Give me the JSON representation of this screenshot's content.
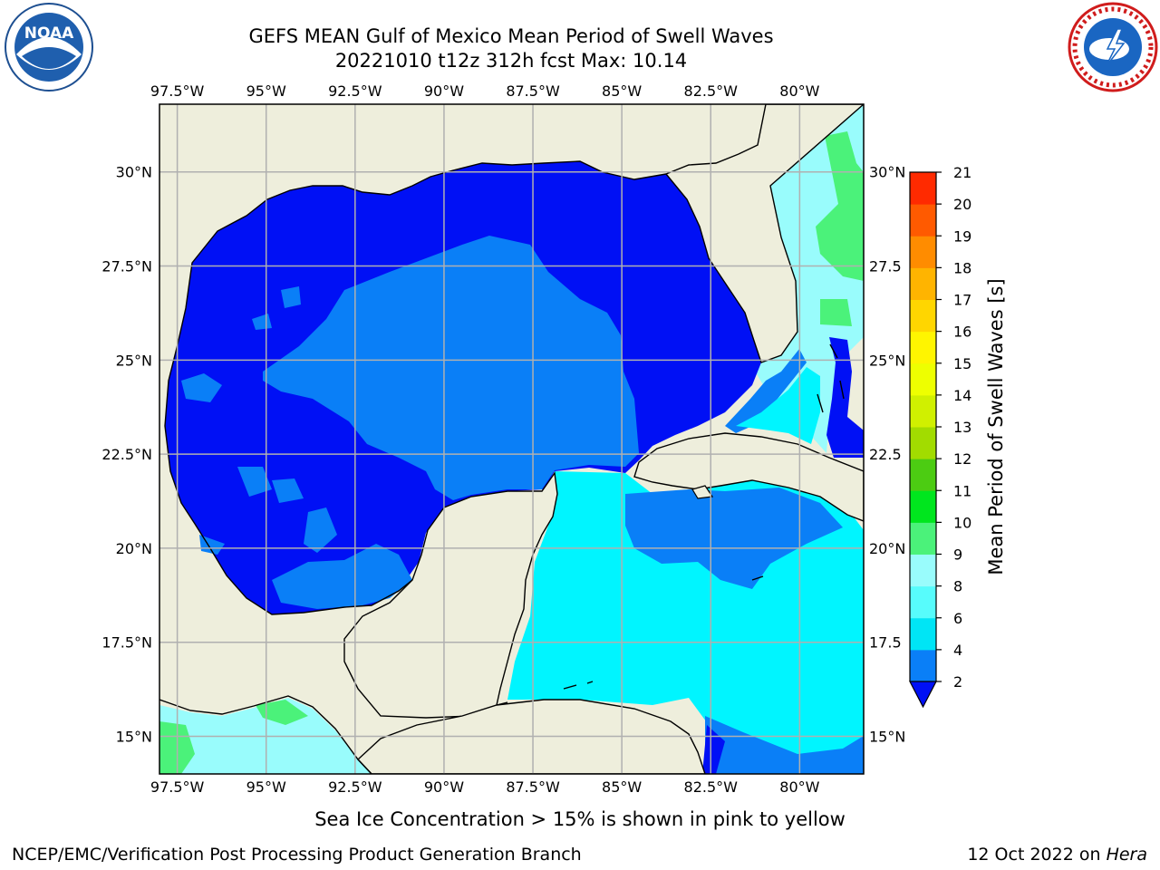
{
  "title": {
    "line1": "GEFS MEAN Gulf of Mexico Mean Period of Swell Waves",
    "line2": "20221010 t12z 312h fcst   Max: 10.14"
  },
  "logos": {
    "left": {
      "icon": "noaa-logo",
      "text": "NOAA"
    },
    "right": {
      "icon": "nws-logo"
    }
  },
  "map": {
    "lon_labels": [
      "97.5°W",
      "95°W",
      "92.5°W",
      "90°W",
      "87.5°W",
      "85°W",
      "82.5°W",
      "80°W"
    ],
    "lat_labels": [
      "30°N",
      "27.5°N",
      "25°N",
      "22.5°N",
      "20°N",
      "17.5°N",
      "15°N"
    ],
    "right_lat_labels": [
      "30°N",
      "27.5",
      "25°N",
      "22.5",
      "20°N",
      "17.5",
      "15°N"
    ],
    "extent": {
      "lon_min": -98,
      "lon_max": -78.2,
      "lat_min": 14.0,
      "lat_max": 31.8
    },
    "colors": {
      "land": "#eeeedc",
      "grid": "#b0b0b0",
      "frame": "#000000"
    },
    "field_regions": [
      {
        "name": "gulf-open-water",
        "period_range": "2-4 s"
      },
      {
        "name": "central-gulf-tongue",
        "period_range": "4-6 s"
      },
      {
        "name": "caribbean-sea",
        "period_range": "6-8 s"
      },
      {
        "name": "atlantic-east-of-florida",
        "period_range": "8-10 s"
      },
      {
        "name": "eastern-pacific",
        "period_range": "8-10 s"
      }
    ]
  },
  "colorbar": {
    "label": "Mean Period of Swell Waves [s]",
    "ticks": [
      "2",
      "4",
      "6",
      "8",
      "9",
      "10",
      "11",
      "12",
      "13",
      "14",
      "15",
      "16",
      "17",
      "18",
      "19",
      "20",
      "21"
    ],
    "colors": [
      "#0a7ff7",
      "#00e5f5",
      "#57fcfc",
      "#99fcfc",
      "#4bf27a",
      "#00e61e",
      "#4ccc12",
      "#a2dc00",
      "#d0f000",
      "#eeff00",
      "#fff500",
      "#ffd600",
      "#ffb400",
      "#ff8c00",
      "#ff5a00",
      "#ff2a00"
    ],
    "extend_color": "#0010f5"
  },
  "footer": {
    "ice_note": "Sea Ice Concentration > 15% is shown in pink to yellow",
    "credit": "NCEP/EMC/Verification Post Processing Product Generation Branch",
    "date": "12 Oct 2022 on",
    "machine": "Hera"
  }
}
